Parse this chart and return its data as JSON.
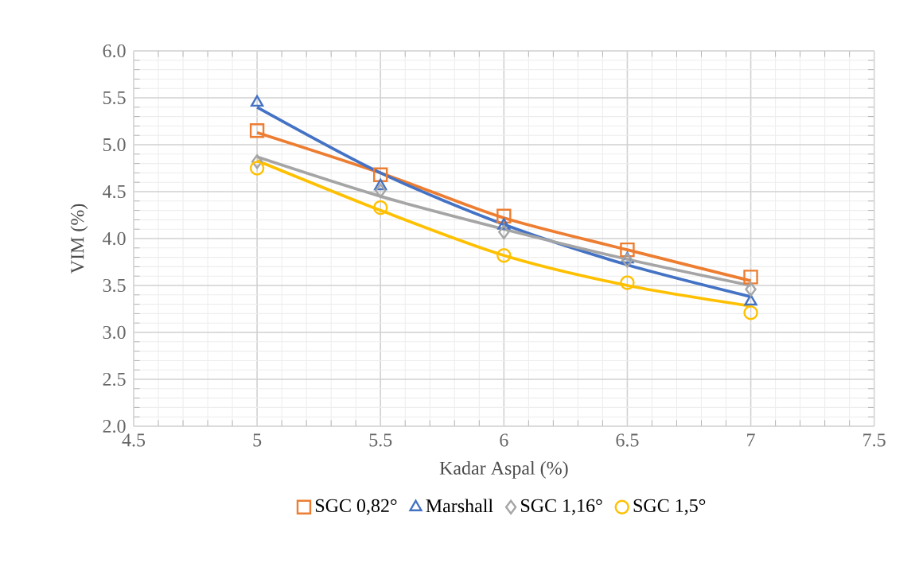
{
  "chart_data": {
    "type": "scatter",
    "xlabel": "Kadar Aspal (%)",
    "ylabel": "VIM (%)",
    "xlim": [
      4.5,
      7.5
    ],
    "xticks": [
      4.5,
      5,
      5.5,
      6,
      6.5,
      7,
      7.5
    ],
    "ylim": [
      2.0,
      6.0
    ],
    "yticks": [
      {
        "value": 2.0,
        "label": "2.0"
      },
      {
        "value": 2.5,
        "label": "2.5"
      },
      {
        "value": 3.0,
        "label": "3.0"
      },
      {
        "value": 3.5,
        "label": "3.5"
      },
      {
        "value": 4.0,
        "label": "4.0"
      },
      {
        "value": 4.5,
        "label": "4.5"
      },
      {
        "value": 5.0,
        "label": "5.0"
      },
      {
        "value": 5.5,
        "label": "5.5"
      },
      {
        "value": 6.0,
        "label": "6.0"
      }
    ],
    "grid": true,
    "legend": "bottom",
    "series": [
      {
        "type": "line",
        "color": "#ed7d31",
        "marker": "none",
        "x": [
          5,
          5.5,
          6,
          6.5,
          7
        ],
        "values": [
          5.13,
          4.7,
          4.22,
          3.88,
          3.55
        ]
      },
      {
        "type": "line",
        "color": "#4472c4",
        "marker": "none",
        "x": [
          5,
          5.5,
          6,
          6.5,
          7
        ],
        "values": [
          5.4,
          4.7,
          4.15,
          3.72,
          3.38
        ]
      },
      {
        "type": "line",
        "color": "#a5a5a5",
        "marker": "none",
        "x": [
          5,
          5.5,
          6,
          6.5,
          7
        ],
        "values": [
          4.87,
          4.45,
          4.1,
          3.78,
          3.5
        ]
      },
      {
        "type": "line",
        "color": "#ffc000",
        "marker": "none",
        "x": [
          5,
          5.5,
          6,
          6.5,
          7
        ],
        "values": [
          4.83,
          4.3,
          3.82,
          3.5,
          3.28
        ]
      },
      {
        "name": "SGC 0,82°",
        "color": "#ed7d31",
        "marker": "square",
        "x": [
          5,
          5.5,
          6,
          6.5,
          7
        ],
        "values": [
          5.15,
          4.68,
          4.24,
          3.88,
          3.59
        ]
      },
      {
        "name": "Marshall",
        "color": "#4472c4",
        "marker": "triangle",
        "x": [
          5,
          5.5,
          6,
          6.5,
          7
        ],
        "values": [
          5.45,
          4.56,
          4.14,
          3.78,
          3.33
        ]
      },
      {
        "name": "SGC 1,16°",
        "color": "#a5a5a5",
        "marker": "diamond",
        "x": [
          5,
          5.5,
          6,
          6.5,
          7
        ],
        "values": [
          4.82,
          4.51,
          4.07,
          3.77,
          3.46
        ]
      },
      {
        "name": "SGC 1,5°",
        "color": "#ffc000",
        "marker": "circle",
        "x": [
          5,
          5.5,
          6,
          6.5,
          7
        ],
        "values": [
          4.75,
          4.33,
          3.82,
          3.53,
          3.21
        ]
      }
    ]
  }
}
